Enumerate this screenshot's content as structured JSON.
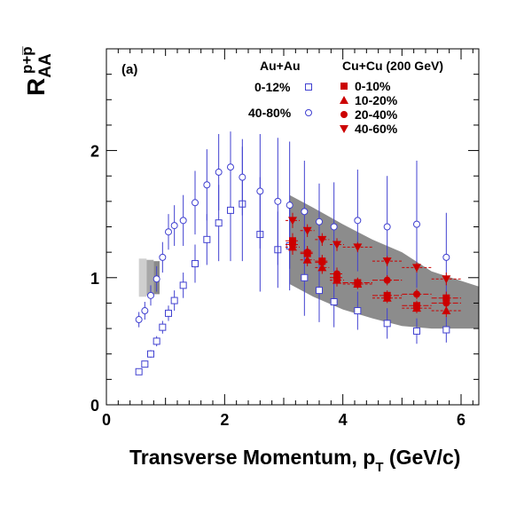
{
  "chart_data": {
    "type": "scatter",
    "panel_label": "(a)",
    "ylabel": {
      "main": "R",
      "sub": "AA",
      "sup": "p+p̅"
    },
    "xlabel": {
      "main": "Transverse Momentum, p",
      "sub": "T",
      "unit": " (GeV/c)"
    },
    "xlim": [
      0,
      6.3
    ],
    "ylim": [
      0,
      2.8
    ],
    "xticks": [
      0,
      2,
      4,
      6
    ],
    "yticks": [
      0,
      1,
      2
    ],
    "legend_headers": {
      "auau": "Au+Au",
      "cucu": "Cu+Cu (200 GeV)"
    },
    "series": [
      {
        "name": "0-12%",
        "group": "auau",
        "marker": "square-open",
        "color": "#4040d0",
        "x": [
          0.55,
          0.65,
          0.75,
          0.85,
          0.95,
          1.05,
          1.15,
          1.3,
          1.5,
          1.7,
          1.9,
          2.1,
          2.3,
          2.6,
          2.9,
          3.1,
          3.35,
          3.6,
          3.85,
          4.25,
          4.75,
          5.25,
          5.75
        ],
        "y": [
          0.26,
          0.32,
          0.4,
          0.5,
          0.61,
          0.72,
          0.82,
          0.94,
          1.11,
          1.3,
          1.43,
          1.53,
          1.58,
          1.34,
          1.22,
          1.25,
          1.0,
          0.9,
          0.81,
          0.74,
          0.64,
          0.58,
          0.59
        ],
        "err": [
          0.02,
          0.02,
          0.03,
          0.04,
          0.05,
          0.06,
          0.08,
          0.1,
          0.15,
          0.2,
          0.3,
          0.4,
          0.45,
          0.45,
          0.3,
          0.35,
          0.3,
          0.25,
          0.2,
          0.15,
          0.12,
          0.1,
          0.1
        ]
      },
      {
        "name": "40-80%",
        "group": "auau",
        "marker": "circle-open",
        "color": "#4040d0",
        "x": [
          0.55,
          0.65,
          0.75,
          0.85,
          0.95,
          1.05,
          1.15,
          1.3,
          1.5,
          1.7,
          1.9,
          2.1,
          2.3,
          2.6,
          2.9,
          3.1,
          3.35,
          3.6,
          3.85,
          4.25,
          4.75,
          5.25,
          5.75
        ],
        "y": [
          0.67,
          0.74,
          0.86,
          0.99,
          1.16,
          1.36,
          1.41,
          1.45,
          1.59,
          1.73,
          1.83,
          1.87,
          1.79,
          1.68,
          1.6,
          1.57,
          1.52,
          1.44,
          1.4,
          1.45,
          1.4,
          1.42,
          1.16
        ],
        "err": [
          0.06,
          0.07,
          0.08,
          0.1,
          0.12,
          0.14,
          0.16,
          0.2,
          0.25,
          0.28,
          0.3,
          0.28,
          0.3,
          0.45,
          0.5,
          0.5,
          0.4,
          0.3,
          0.35,
          0.4,
          0.4,
          0.5,
          0.35
        ]
      },
      {
        "name": "0-10%",
        "group": "cucu",
        "marker": "square",
        "color": "#cc0000",
        "x": [
          3.15,
          3.4,
          3.65,
          3.9,
          4.25,
          4.75,
          5.25,
          5.75
        ],
        "y": [
          1.29,
          1.19,
          1.13,
          1.0,
          0.96,
          0.86,
          0.78,
          0.84
        ],
        "err": [
          0.06,
          0.05,
          0.05,
          0.05,
          0.04,
          0.04,
          0.04,
          0.05
        ]
      },
      {
        "name": "10-20%",
        "group": "cucu",
        "marker": "triangle-up",
        "color": "#cc0000",
        "x": [
          3.15,
          3.4,
          3.65,
          3.9,
          4.25,
          4.75,
          5.25,
          5.75
        ],
        "y": [
          1.24,
          1.14,
          1.08,
          0.98,
          0.95,
          0.84,
          0.76,
          0.74
        ],
        "err": [
          0.06,
          0.05,
          0.05,
          0.05,
          0.04,
          0.04,
          0.04,
          0.05
        ]
      },
      {
        "name": "20-40%",
        "group": "cucu",
        "marker": "circle",
        "color": "#cc0000",
        "x": [
          3.15,
          3.4,
          3.65,
          3.9,
          4.25,
          4.75,
          5.25,
          5.75
        ],
        "y": [
          1.26,
          1.2,
          1.12,
          1.03,
          0.96,
          0.98,
          0.87,
          0.8
        ],
        "err": [
          0.06,
          0.05,
          0.05,
          0.05,
          0.04,
          0.04,
          0.04,
          0.05
        ]
      },
      {
        "name": "40-60%",
        "group": "cucu",
        "marker": "triangle-down",
        "color": "#cc0000",
        "x": [
          3.15,
          3.4,
          3.65,
          3.9,
          4.25,
          4.75,
          5.25,
          5.75
        ],
        "y": [
          1.45,
          1.37,
          1.3,
          1.26,
          1.24,
          1.13,
          1.08,
          0.99
        ],
        "err": [
          0.06,
          0.05,
          0.05,
          0.05,
          0.04,
          0.04,
          0.04,
          0.05
        ]
      }
    ],
    "sys_band": {
      "color": "#8c8c8c",
      "x": [
        3.1,
        3.5,
        4.0,
        4.5,
        5.0,
        5.5,
        6.3
      ],
      "upper": [
        1.65,
        1.55,
        1.42,
        1.3,
        1.2,
        1.05,
        0.93
      ],
      "lower": [
        0.95,
        0.85,
        0.75,
        0.68,
        0.62,
        0.6,
        0.6
      ]
    },
    "norm_boxes": [
      {
        "x0": 0.55,
        "x1": 0.68,
        "y0": 0.85,
        "y1": 1.15,
        "color": "#cfcfcf"
      },
      {
        "x0": 0.68,
        "x1": 0.8,
        "y0": 0.86,
        "y1": 1.14,
        "color": "#a8a8a8"
      },
      {
        "x0": 0.8,
        "x1": 0.9,
        "y0": 0.87,
        "y1": 1.13,
        "color": "#8a8a8a"
      }
    ]
  }
}
